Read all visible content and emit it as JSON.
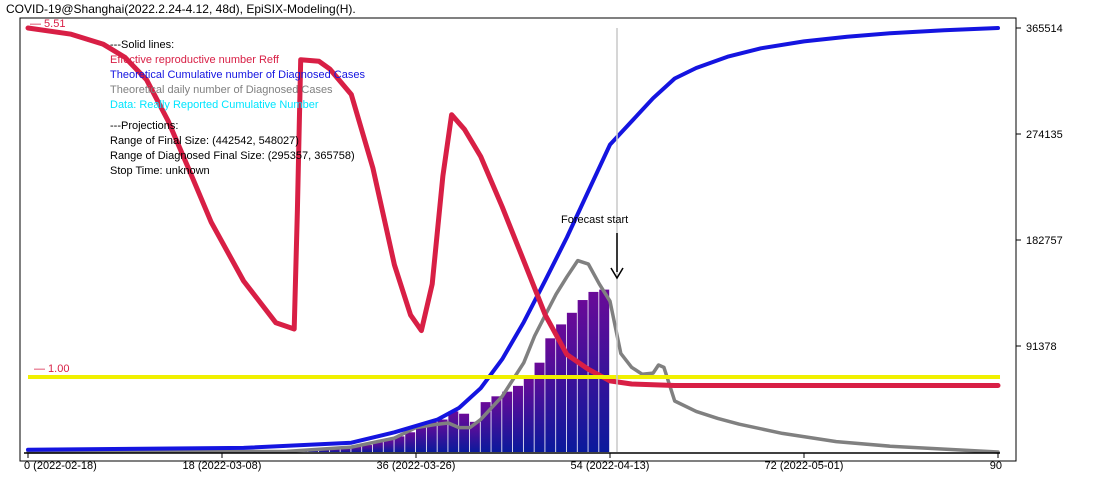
{
  "window": {
    "title": "COVID-19@Shanghai(2022.2.24-4.12, 48d), EpiSIX-Modeling(H)."
  },
  "legend": {
    "header": "---Solid lines:",
    "reff": "Effective reproductive number Reff",
    "theo_cum": "Theoretical Cumulative number of Diagnosed Cases",
    "theo_daily": "Theoretical daily number of Diagnosed Cases",
    "data": "Data: Really Reported Cumulative Number",
    "proj_header": "---Projections:",
    "range_final": "Range of Final Size: (442542, 548027)",
    "range_diag": "Range of Diagnosed Final Size: (295357, 365758)",
    "stop": "Stop Time: unknown"
  },
  "annotations": {
    "forecast": "Forecast start",
    "reff_max": "— 5.51",
    "reff_one": "— 1.00"
  },
  "colors": {
    "reff": "#d81f45",
    "cumulative": "#1414e0",
    "daily": "#808080",
    "data": "#00e5ff",
    "threshold": "#f0f000",
    "bar_start": "#0a1a9c",
    "bar_end": "#6a0a98"
  },
  "chart_data": {
    "type": "line",
    "x_ticks": [
      "0 (2022-02-18)",
      "18 (2022-03-08)",
      "36 (2022-03-26)",
      "54 (2022-04-13)",
      "72 (2022-05-01)",
      "90"
    ],
    "xlim": [
      0,
      90
    ],
    "y_right_ticks": [
      "365514",
      "274135",
      "182757",
      "91378"
    ],
    "ylim": [
      0,
      365514
    ],
    "forecast_start_day": 54,
    "reff_reference": 1.0,
    "reff_max": 5.51,
    "series": [
      {
        "name": "Effective reproductive number Reff",
        "axis": "reff",
        "x": [
          0,
          4,
          7,
          9,
          11,
          13,
          15,
          17,
          20,
          23,
          24.7,
          25,
          25.3,
          27,
          28,
          30,
          32,
          34,
          35.5,
          36.5,
          37.5,
          38.5,
          39.3,
          40.5,
          42,
          44,
          46,
          48,
          50,
          52,
          54,
          56,
          58,
          60,
          65,
          70,
          80,
          90
        ],
        "y": [
          5.51,
          5.43,
          5.3,
          5.13,
          4.84,
          4.31,
          3.66,
          3.0,
          2.24,
          1.7,
          1.62,
          3.16,
          5.1,
          5.08,
          4.98,
          4.65,
          3.7,
          2.45,
          1.8,
          1.6,
          2.2,
          3.6,
          4.39,
          4.2,
          3.85,
          3.2,
          2.5,
          1.8,
          1.29,
          1.1,
          0.95,
          0.91,
          0.9,
          0.89,
          0.89,
          0.89,
          0.89,
          0.89
        ]
      },
      {
        "name": "Theoretical Cumulative number of Diagnosed Cases",
        "axis": "cases",
        "x": [
          0,
          20,
          30,
          34,
          38,
          40,
          42,
          44,
          46,
          48,
          50,
          52,
          54,
          56,
          58,
          60,
          62,
          65,
          68,
          72,
          76,
          80,
          85,
          90
        ],
        "y": [
          2000,
          3500,
          8000,
          17000,
          28000,
          38000,
          55000,
          80000,
          112000,
          148000,
          185000,
          225000,
          265000,
          285000,
          305000,
          322000,
          331000,
          341000,
          348000,
          354000,
          358000,
          361000,
          363500,
          365514
        ]
      },
      {
        "name": "Theoretical daily number of Diagnosed Cases",
        "axis": "cases",
        "x": [
          0,
          24,
          30,
          34,
          36,
          38,
          39,
          40,
          41,
          42,
          44,
          46,
          47,
          48,
          49,
          50,
          51,
          52,
          53,
          54,
          55,
          56,
          57,
          58,
          58.5,
          59,
          60,
          62,
          64,
          66,
          70,
          75,
          80,
          85,
          90
        ],
        "y": [
          0,
          500,
          4200,
          12000,
          21000,
          24000,
          25000,
          21000,
          21000,
          28000,
          48000,
          77000,
          100000,
          118000,
          136000,
          151000,
          165000,
          162000,
          145000,
          130000,
          85000,
          73000,
          67000,
          68000,
          75000,
          73000,
          44000,
          35000,
          29000,
          24000,
          16000,
          9000,
          5000,
          2500,
          0
        ]
      }
    ],
    "bars": {
      "name": "Data: Really Reported Cumulative Number",
      "x": [
        18,
        19,
        20,
        21,
        22,
        23,
        24,
        25,
        26,
        27,
        28,
        29,
        30,
        31,
        32,
        33,
        34,
        35,
        36,
        37,
        38,
        39,
        40,
        41,
        42,
        43,
        44,
        45,
        46,
        47,
        48,
        49,
        50,
        51,
        52,
        53
      ],
      "y": [
        500,
        600,
        700,
        800,
        1000,
        1100,
        1300,
        1600,
        1900,
        2200,
        2700,
        3200,
        4500,
        6000,
        8500,
        10500,
        13500,
        17000,
        24000,
        26000,
        28000,
        35000,
        33000,
        26000,
        43000,
        48000,
        52000,
        57000,
        65000,
        77000,
        98000,
        110000,
        120000,
        131000,
        138000,
        140000
      ]
    }
  }
}
